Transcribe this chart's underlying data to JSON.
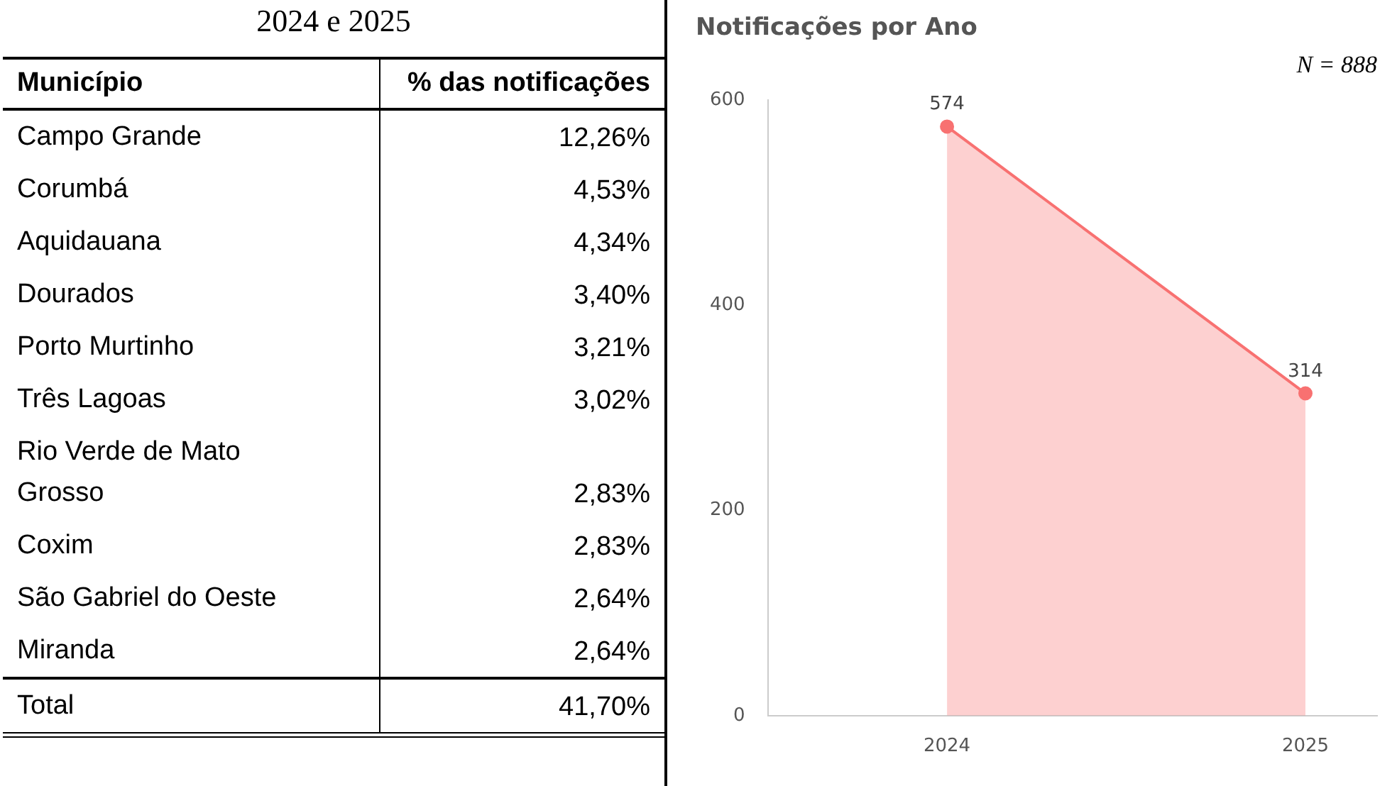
{
  "chart_data": [
    {
      "type": "other",
      "title": "2024 e 2025",
      "xlabel": "Município",
      "ylabel": "% das notificações",
      "categories": [
        "Campo Grande",
        "Corumbá",
        "Aquidauana",
        "Dourados",
        "Porto Murtinho",
        "Três Lagoas",
        "Rio Verde de Mato Grosso",
        "Coxim",
        "São Gabriel do Oeste",
        "Miranda",
        "Total"
      ],
      "value_labels": [
        "12,26%",
        "4,53%",
        "4,34%",
        "3,40%",
        "3,21%",
        "3,02%",
        "2,83%",
        "2,83%",
        "2,64%",
        "2,64%",
        "41,70%"
      ]
    },
    {
      "type": "area",
      "title": "Notificações por Ano",
      "categories": [
        "2024",
        "2025"
      ],
      "values": [
        574,
        314
      ],
      "color": "#f87171",
      "ylim": [
        0,
        600
      ],
      "yticks": [
        0,
        200,
        400,
        600
      ],
      "data_labels": true,
      "marker": "circle",
      "grid": false,
      "annotations": [
        "N = 888"
      ]
    }
  ]
}
